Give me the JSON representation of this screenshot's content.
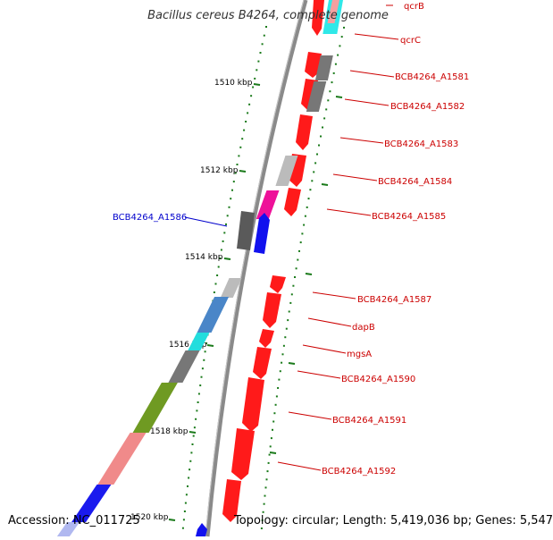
{
  "title": "Bacillus cereus B4264, complete genome",
  "footer": {
    "accession": "Accession: NC_011725",
    "summary": "Topology: circular; Length: 5,419,036 bp; Genes: 5,547"
  },
  "colors": {
    "backbone": "#8a8a8a",
    "tick": "#1a7a1a",
    "label_forward": "#cc0000",
    "label_reverse": "#0000cc"
  },
  "scale_labels": [
    "1510 kbp",
    "1512 kbp",
    "1514 kbp",
    "1516 kbp",
    "1518 kbp",
    "1520 kbp"
  ],
  "gene_labels": [
    {
      "text": "qcrB",
      "color": "#cc0000"
    },
    {
      "text": "qcrC",
      "color": "#cc0000"
    },
    {
      "text": "BCB4264_A1581",
      "color": "#cc0000"
    },
    {
      "text": "BCB4264_A1582",
      "color": "#cc0000"
    },
    {
      "text": "BCB4264_A1583",
      "color": "#cc0000"
    },
    {
      "text": "BCB4264_A1584",
      "color": "#cc0000"
    },
    {
      "text": "BCB4264_A1585",
      "color": "#cc0000"
    },
    {
      "text": "BCB4264_A1586",
      "color": "#0000cc"
    },
    {
      "text": "BCB4264_A1587",
      "color": "#cc0000"
    },
    {
      "text": "dapB",
      "color": "#cc0000"
    },
    {
      "text": "mgsA",
      "color": "#cc0000"
    },
    {
      "text": "BCB4264_A1590",
      "color": "#cc0000"
    },
    {
      "text": "BCB4264_A1591",
      "color": "#cc0000"
    },
    {
      "text": "BCB4264_A1592",
      "color": "#cc0000"
    }
  ]
}
